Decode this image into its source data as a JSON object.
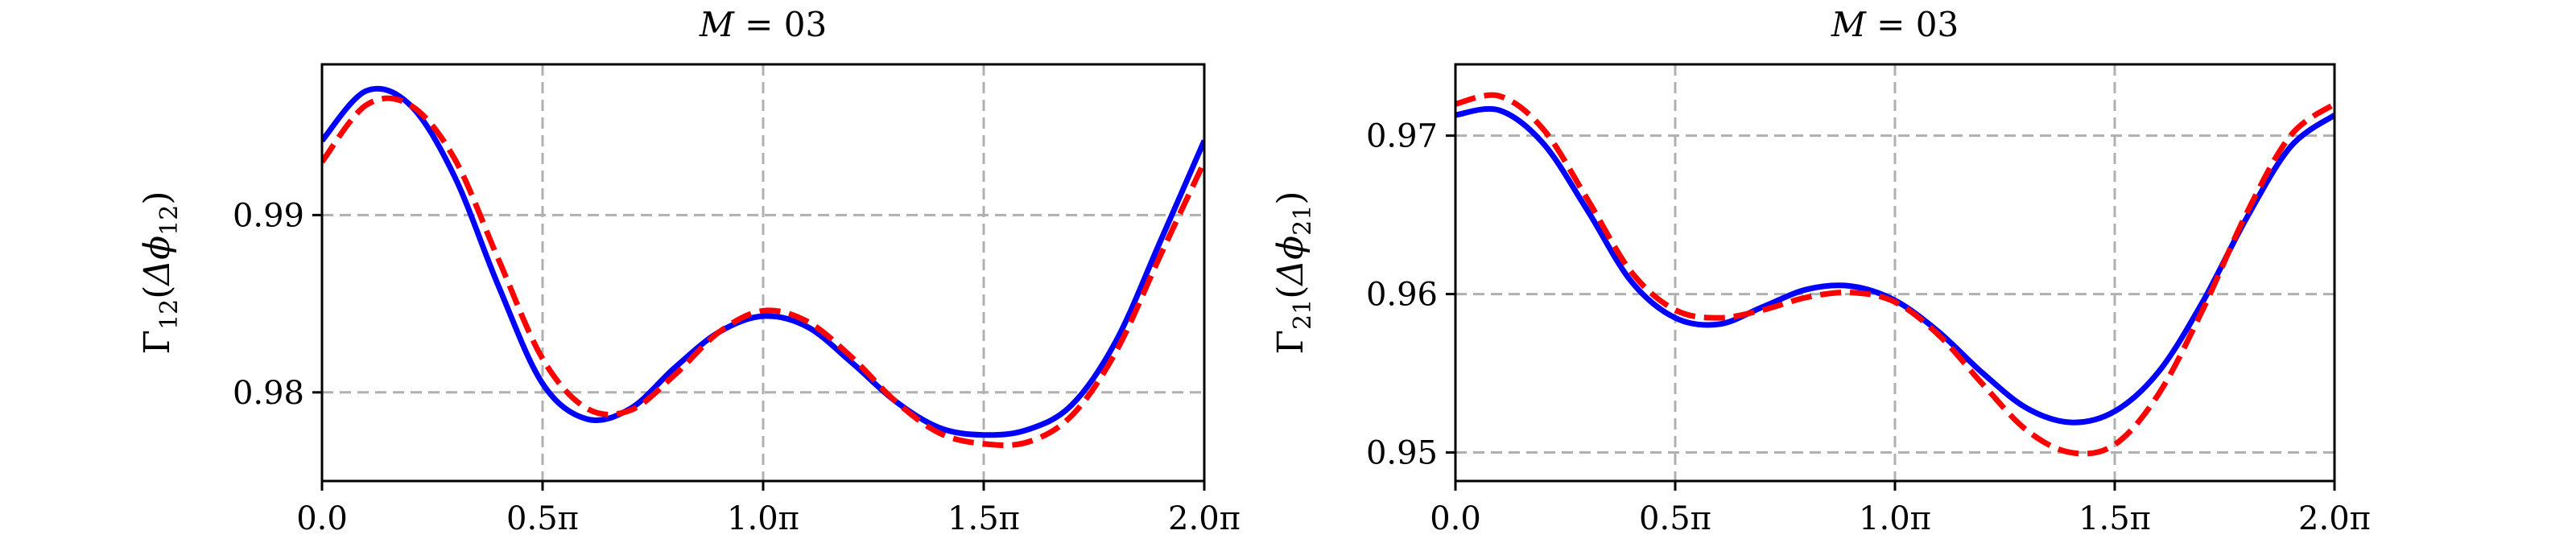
{
  "chart_data": [
    {
      "type": "line",
      "title_var": "M",
      "title_val": "03",
      "ylabel_main": "Γ",
      "ylabel_sub": "12",
      "ylabel_arg": "Δϕ",
      "ylabel_arg_sub": "12",
      "xlim": [
        0,
        2
      ],
      "ylim": [
        0.975,
        0.9985
      ],
      "xticks": [
        0,
        0.5,
        1,
        1.5,
        2
      ],
      "xtick_labels": [
        "0.0",
        "0.5π",
        "1.0π",
        "1.5π",
        "2.0π"
      ],
      "yticks": [
        0.98,
        0.99
      ],
      "ytick_labels": [
        "0.98",
        "0.99"
      ],
      "grid": true,
      "x": [
        0,
        0.1,
        0.2,
        0.3,
        0.4,
        0.5,
        0.6,
        0.7,
        0.8,
        0.9,
        1.0,
        1.1,
        1.2,
        1.3,
        1.4,
        1.5,
        1.6,
        1.7,
        1.8,
        1.9,
        2.0
      ],
      "series": [
        {
          "color": "#0000ff",
          "style": "solid",
          "values": [
            0.9942,
            0.997,
            0.9962,
            0.9922,
            0.986,
            0.9805,
            0.9785,
            0.9791,
            0.9814,
            0.9834,
            0.9843,
            0.9837,
            0.9817,
            0.9795,
            0.978,
            0.9776,
            0.9779,
            0.9793,
            0.9829,
            0.9885,
            0.9942
          ]
        },
        {
          "color": "#ff0000",
          "style": "dashed",
          "values": [
            0.993,
            0.9962,
            0.9962,
            0.9932,
            0.9875,
            0.9819,
            0.9791,
            0.979,
            0.981,
            0.9834,
            0.9846,
            0.984,
            0.982,
            0.9795,
            0.9777,
            0.9771,
            0.9772,
            0.9787,
            0.9823,
            0.9877,
            0.993
          ]
        }
      ]
    },
    {
      "type": "line",
      "title_var": "M",
      "title_val": "03",
      "ylabel_main": "Γ",
      "ylabel_sub": "21",
      "ylabel_arg": "Δϕ",
      "ylabel_arg_sub": "21",
      "xlim": [
        0,
        2
      ],
      "ylim": [
        0.9482,
        0.9745
      ],
      "xticks": [
        0,
        0.5,
        1,
        1.5,
        2
      ],
      "xtick_labels": [
        "0.0",
        "0.5π",
        "1.0π",
        "1.5π",
        "2.0π"
      ],
      "yticks": [
        0.95,
        0.96,
        0.97
      ],
      "ytick_labels": [
        "0.95",
        "0.96",
        "0.97"
      ],
      "grid": true,
      "x": [
        0,
        0.1,
        0.2,
        0.3,
        0.4,
        0.5,
        0.6,
        0.7,
        0.8,
        0.9,
        1.0,
        1.1,
        1.2,
        1.3,
        1.4,
        1.5,
        1.6,
        1.7,
        1.8,
        1.9,
        2.0
      ],
      "series": [
        {
          "color": "#0000ff",
          "style": "solid",
          "values": [
            0.9713,
            0.9716,
            0.9695,
            0.9653,
            0.9608,
            0.9585,
            0.9581,
            0.9592,
            0.9603,
            0.9605,
            0.9596,
            0.9576,
            0.955,
            0.9528,
            0.9519,
            0.9526,
            0.9551,
            0.9595,
            0.9648,
            0.9693,
            0.9713
          ]
        },
        {
          "color": "#ff0000",
          "style": "dashed",
          "values": [
            0.972,
            0.9725,
            0.9704,
            0.966,
            0.9614,
            0.959,
            0.9585,
            0.959,
            0.9598,
            0.9601,
            0.9595,
            0.9574,
            0.9543,
            0.9514,
            0.95,
            0.9505,
            0.9537,
            0.959,
            0.9651,
            0.97,
            0.972
          ]
        }
      ]
    }
  ]
}
